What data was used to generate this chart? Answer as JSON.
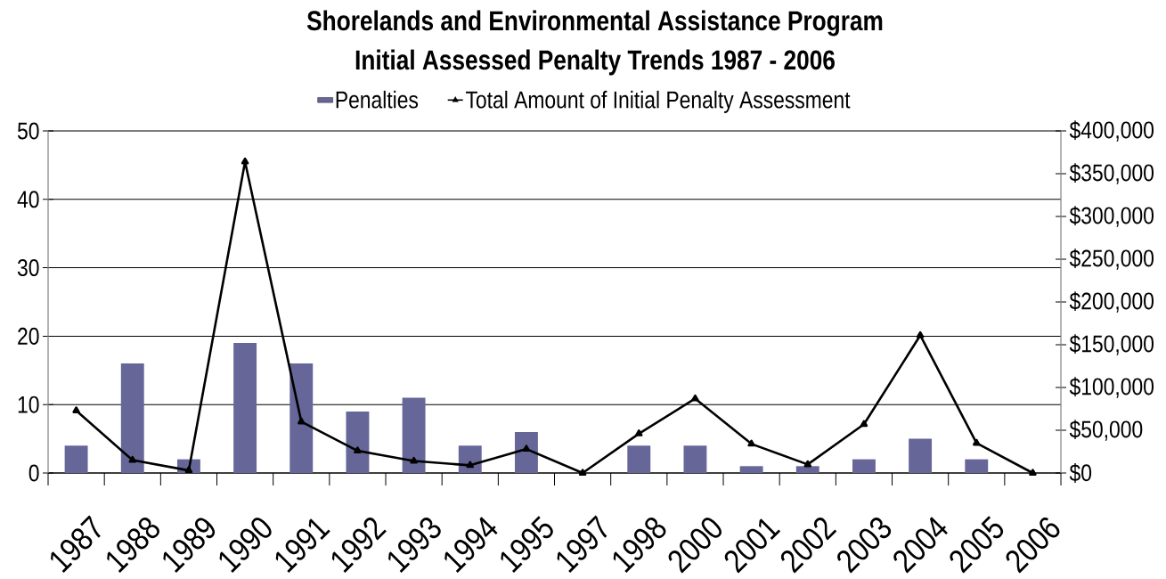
{
  "chart_data": {
    "type": "bar",
    "title": "Shorelands and Environmental Assistance Program",
    "subtitle": "Initial Assessed Penalty Trends 1987 - 2006",
    "categories": [
      "1987",
      "1988",
      "1989",
      "1990",
      "1991",
      "1992",
      "1993",
      "1994",
      "1995",
      "1997",
      "1998",
      "2000",
      "2001",
      "2002",
      "2003",
      "2004",
      "2005",
      "2006"
    ],
    "series": [
      {
        "name": "Penalties",
        "color": "#666699",
        "values": [
          4,
          16,
          2,
          19,
          16,
          9,
          11,
          4,
          6,
          0,
          4,
          4,
          1,
          1,
          2,
          5,
          2,
          0
        ]
      },
      {
        "name": "Total Amount of Initial Penalty Assessment",
        "type": "line",
        "axis": "y2",
        "color": "#000000",
        "values": [
          73000,
          15000,
          3000,
          364000,
          60000,
          26000,
          14000,
          9000,
          28000,
          0,
          46000,
          87000,
          34000,
          10000,
          57000,
          161000,
          35000,
          0
        ]
      }
    ],
    "ylim": [
      0,
      50
    ],
    "yticks": [
      0,
      10,
      20,
      30,
      40,
      50
    ],
    "y2lim": [
      0,
      400000
    ],
    "y2ticks": [
      {
        "value": 0,
        "label": "$0"
      },
      {
        "value": 50000,
        "label": "$50,000"
      },
      {
        "value": 100000,
        "label": "$100,000"
      },
      {
        "value": 150000,
        "label": "$150,000"
      },
      {
        "value": 200000,
        "label": "$200,000"
      },
      {
        "value": 250000,
        "label": "$250,000"
      },
      {
        "value": 300000,
        "label": "$300,000"
      },
      {
        "value": 350000,
        "label": "$350,000"
      },
      {
        "value": 400000,
        "label": "$400,000"
      }
    ],
    "grid": "y",
    "legend": "top",
    "marker": "triangle"
  }
}
